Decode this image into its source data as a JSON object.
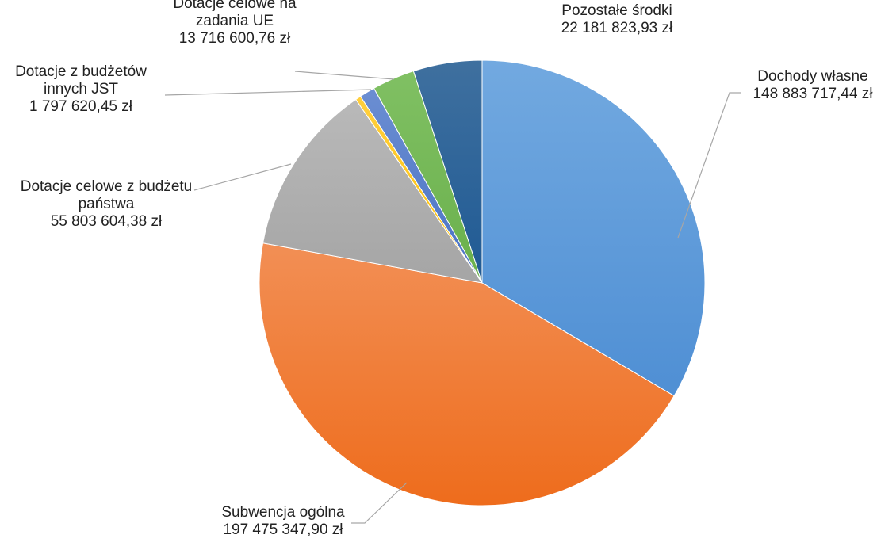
{
  "chart_data": {
    "type": "pie",
    "title": "",
    "slices": [
      {
        "label_lines": [
          "Dochody własne"
        ],
        "value_text": "148 883 717,44 zł",
        "value": 148883717.44,
        "color": "#4f8fd4",
        "color_light": "#72a9e0"
      },
      {
        "label_lines": [
          "Subwencja ogólna"
        ],
        "value_text": "197 475 347,90 zł",
        "value": 197475347.9,
        "color": "#ee6c1c",
        "color_light": "#f28f55"
      },
      {
        "label_lines": [
          "Dotacje celowe z budżetu",
          "państwa"
        ],
        "value_text": "55 803 604,38 zł",
        "value": 55803604.38,
        "color": "#a5a5a5",
        "color_light": "#b9b9b9"
      },
      {
        "label_lines": [
          "Dotacje z budżetów",
          "innych JST"
        ],
        "value_text": "1 797 620,45 zł",
        "value": 1797620.45,
        "color": "#ffc000",
        "color_light": "#ffcf3f"
      },
      {
        "label_lines": [],
        "value_text": "",
        "value": 4990000,
        "color": "#4a72c4",
        "color_light": "#6b8ed2"
      },
      {
        "label_lines": [
          "Dotacje celowe na",
          "zadania UE"
        ],
        "value_text": "13 716 600,76 zł",
        "value": 13716600.76,
        "color": "#6ab04c",
        "color_light": "#80c063"
      },
      {
        "label_lines": [
          "Pozostałe środki"
        ],
        "value_text": "22 181 823,93 zł",
        "value": 22181823.93,
        "color": "#1f5a94",
        "color_light": "#3f709f"
      }
    ]
  }
}
